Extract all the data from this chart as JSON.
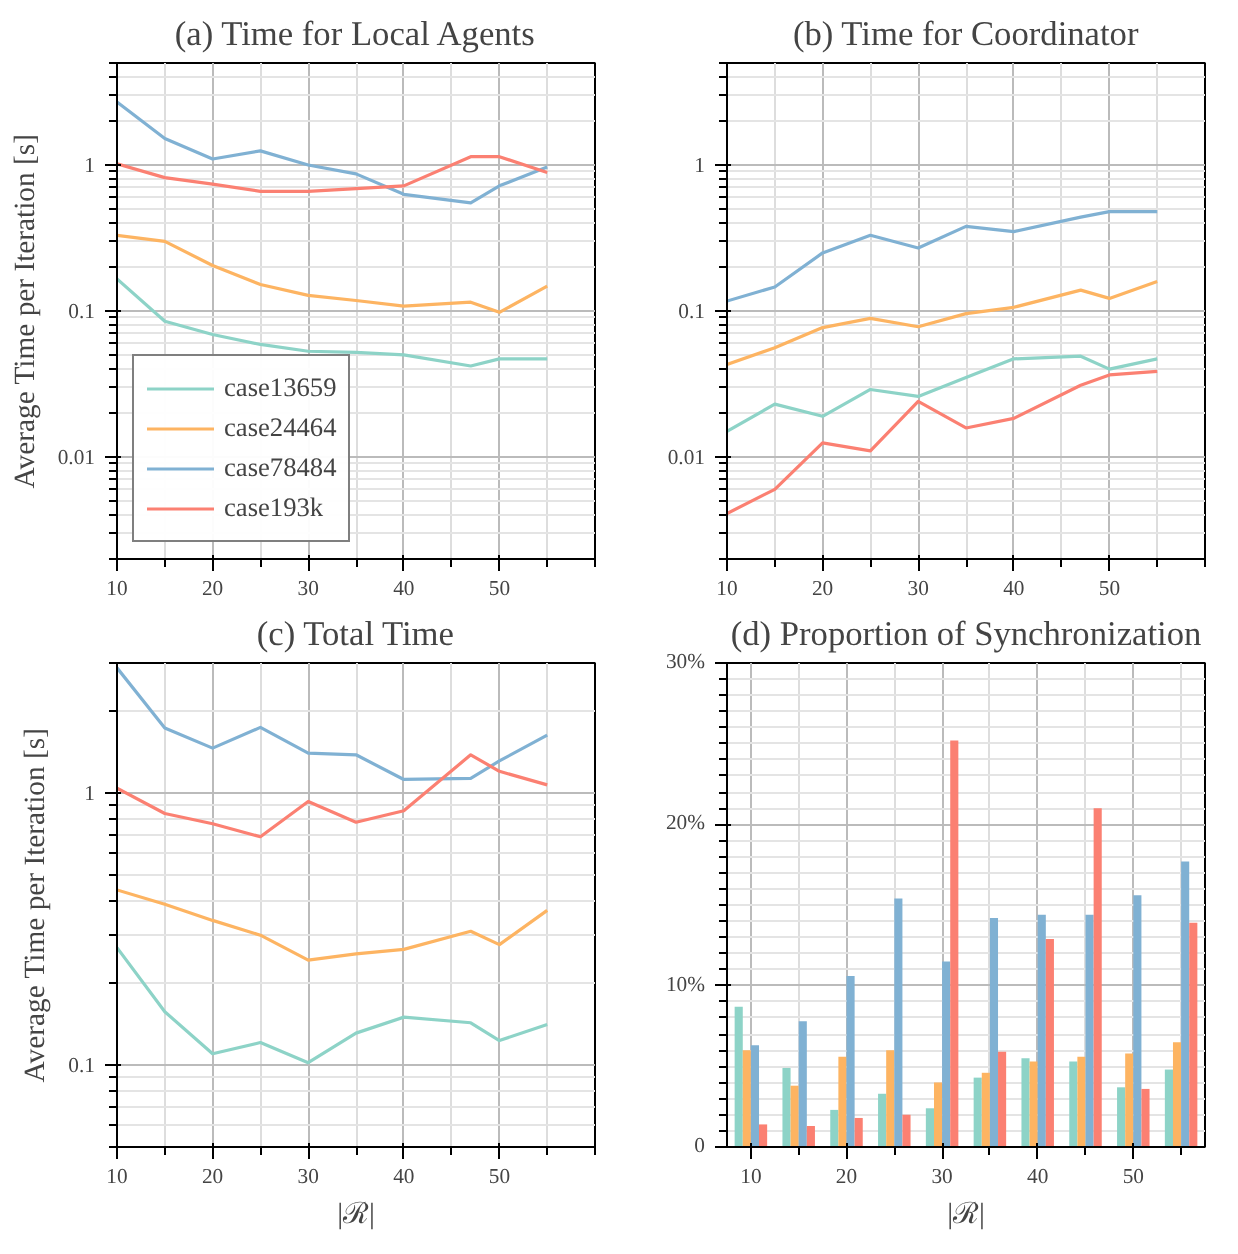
{
  "chart_data": [
    {
      "type": "line",
      "title": "(a) Time for Local Agents",
      "ylabel": "Average Time per Iteration [s]",
      "log": "y",
      "grid": true,
      "legend": "bottom left",
      "xlim": [
        10,
        60
      ],
      "xticks": [
        10,
        20,
        30,
        40,
        50
      ],
      "ylim": [
        0.002,
        5
      ],
      "yticks": [
        0.01,
        0.1,
        1
      ],
      "x": [
        10,
        15,
        20,
        25,
        30,
        35,
        40,
        47,
        50,
        55
      ],
      "series": [
        {
          "name": "case13659",
          "color": "#8dd3c7",
          "values": [
            0.166,
            0.085,
            0.069,
            0.059,
            0.053,
            0.052,
            0.05,
            0.042,
            0.047,
            0.047
          ]
        },
        {
          "name": "case24464",
          "color": "#fdb462",
          "values": [
            0.33,
            0.3,
            0.205,
            0.152,
            0.128,
            0.118,
            0.108,
            0.115,
            0.098,
            0.148
          ]
        },
        {
          "name": "case78484",
          "color": "#80b1d3",
          "values": [
            2.7,
            1.52,
            1.1,
            1.25,
            1.0,
            0.87,
            0.63,
            0.55,
            0.72,
            0.97
          ]
        },
        {
          "name": "case193k",
          "color": "#fb8072",
          "values": [
            1.02,
            0.82,
            0.74,
            0.66,
            0.66,
            0.69,
            0.72,
            1.14,
            1.14,
            0.89
          ]
        }
      ]
    },
    {
      "type": "line",
      "title": "(b) Time for Coordinator",
      "log": "y",
      "grid": true,
      "xlim": [
        10,
        60
      ],
      "xticks": [
        10,
        20,
        30,
        40,
        50
      ],
      "ylim": [
        0.002,
        5
      ],
      "yticks": [
        0.01,
        0.1,
        1
      ],
      "x": [
        10,
        15,
        20,
        25,
        30,
        35,
        40,
        47,
        50,
        55
      ],
      "series": [
        {
          "color": "#8dd3c7",
          "values": [
            0.015,
            0.023,
            0.019,
            0.029,
            0.026,
            0.035,
            0.047,
            0.049,
            0.04,
            0.047
          ]
        },
        {
          "color": "#fdb462",
          "values": [
            0.043,
            0.056,
            0.077,
            0.089,
            0.078,
            0.096,
            0.106,
            0.139,
            0.122,
            0.159
          ]
        },
        {
          "color": "#80b1d3",
          "values": [
            0.117,
            0.146,
            0.25,
            0.33,
            0.27,
            0.38,
            0.35,
            0.44,
            0.48,
            0.48
          ]
        },
        {
          "color": "#fb8072",
          "values": [
            0.0041,
            0.006,
            0.0125,
            0.011,
            0.024,
            0.0158,
            0.0184,
            0.031,
            0.0365,
            0.0386
          ]
        }
      ]
    },
    {
      "type": "line",
      "title": "(c) Total Time",
      "xlabel": "|ℛ|",
      "ylabel": "Average Time per Iteration [s]",
      "log": "y",
      "grid": true,
      "xlim": [
        10,
        60
      ],
      "xticks": [
        10,
        20,
        30,
        40,
        50
      ],
      "ylim": [
        0.05,
        3
      ],
      "yticks": [
        0.1,
        1
      ],
      "x": [
        10,
        15,
        20,
        25,
        30,
        35,
        40,
        47,
        50,
        55
      ],
      "series": [
        {
          "color": "#8dd3c7",
          "values": [
            0.27,
            0.157,
            0.11,
            0.121,
            0.102,
            0.131,
            0.15,
            0.143,
            0.123,
            0.141
          ]
        },
        {
          "color": "#fdb462",
          "values": [
            0.44,
            0.39,
            0.34,
            0.3,
            0.243,
            0.256,
            0.266,
            0.31,
            0.277,
            0.37
          ]
        },
        {
          "color": "#80b1d3",
          "values": [
            2.88,
            1.73,
            1.46,
            1.74,
            1.4,
            1.38,
            1.12,
            1.13,
            1.31,
            1.63
          ]
        },
        {
          "color": "#fb8072",
          "values": [
            1.04,
            0.84,
            0.77,
            0.69,
            0.93,
            0.78,
            0.86,
            1.38,
            1.2,
            1.07
          ]
        }
      ]
    },
    {
      "type": "bar",
      "title": "(d) Proportion of Synchronization",
      "xlabel": "|ℛ|",
      "grid": true,
      "xlim": [
        7.5,
        57.5
      ],
      "xticks": [
        10,
        20,
        30,
        40,
        50
      ],
      "ylim": [
        0,
        30
      ],
      "yticks": [
        0,
        {
          "value": 10,
          "label": "10%"
        },
        {
          "value": 20,
          "label": "20%"
        },
        {
          "value": 30,
          "label": "30%"
        }
      ],
      "x": [
        10,
        15,
        20,
        25,
        30,
        35,
        40,
        45,
        50,
        55
      ],
      "series": [
        {
          "color": "#8dd3c7",
          "values": [
            8.7,
            4.9,
            2.3,
            3.3,
            2.4,
            4.3,
            5.5,
            5.3,
            3.7,
            4.8
          ]
        },
        {
          "color": "#fdb462",
          "values": [
            6.0,
            3.8,
            5.6,
            6.0,
            4.0,
            4.6,
            5.3,
            5.6,
            5.8,
            6.5
          ]
        },
        {
          "color": "#80b1d3",
          "values": [
            6.3,
            7.8,
            10.6,
            15.4,
            11.5,
            14.2,
            14.4,
            14.4,
            15.6,
            17.7
          ]
        },
        {
          "color": "#fb8072",
          "values": [
            1.4,
            1.3,
            1.8,
            2.0,
            25.2,
            5.9,
            12.9,
            21.0,
            3.6,
            13.9
          ]
        }
      ]
    }
  ]
}
